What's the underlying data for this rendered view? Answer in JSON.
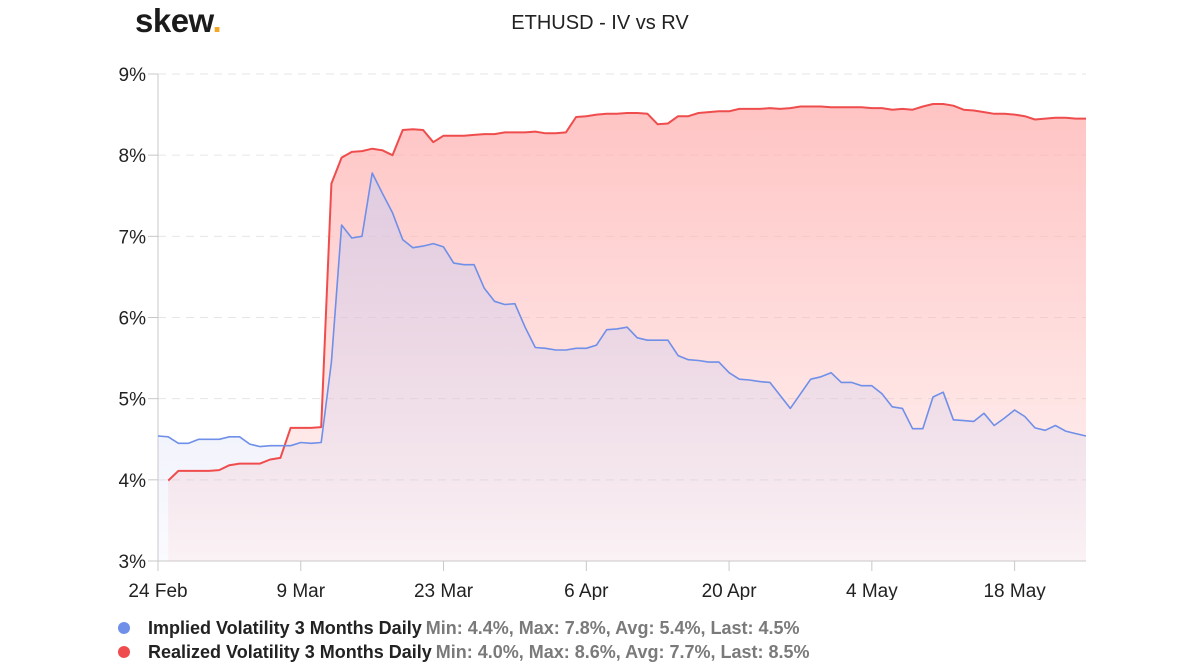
{
  "brand": {
    "name": "skew",
    "dot": "."
  },
  "chart_data": {
    "type": "area",
    "title": "ETHUSD - IV vs RV",
    "xlabel": "",
    "ylabel": "",
    "ylim": [
      3,
      9
    ],
    "y_unit": "%",
    "y_ticks": [
      "3%",
      "4%",
      "5%",
      "6%",
      "7%",
      "8%",
      "9%"
    ],
    "x_ticks": [
      "24 Feb",
      "9 Mar",
      "23 Mar",
      "6 Apr",
      "20 Apr",
      "4 May",
      "18 May"
    ],
    "x_tick_days": [
      0,
      14,
      28,
      42,
      56,
      70,
      84
    ],
    "grid": "horizontal dashed",
    "legend_position": "bottom-left",
    "series": [
      {
        "name": "Implied Volatility 3 Months Daily",
        "stats": "Min: 4.4%, Max: 7.8%, Avg: 5.4%, Last: 4.5%",
        "color": "#6f8fe8",
        "x": [
          0,
          1,
          2,
          3,
          4,
          5,
          6,
          7,
          8,
          9,
          10,
          11,
          12,
          13,
          14,
          15,
          16,
          17,
          18,
          19,
          20,
          21,
          22,
          23,
          24,
          25,
          26,
          27,
          28,
          29,
          30,
          31,
          32,
          33,
          34,
          35,
          36,
          37,
          38,
          39,
          40,
          41,
          42,
          43,
          44,
          45,
          46,
          47,
          48,
          49,
          50,
          51,
          52,
          53,
          54,
          55,
          56,
          57,
          58,
          59,
          60,
          61,
          62,
          63,
          64,
          65,
          66,
          67,
          68,
          69,
          70,
          71,
          72,
          73,
          74,
          75,
          76,
          77,
          78,
          79,
          80,
          81,
          82,
          83,
          84,
          85,
          86,
          87,
          88,
          89,
          90,
          91
        ],
        "y": [
          4.54,
          4.53,
          4.45,
          4.45,
          4.5,
          4.5,
          4.5,
          4.53,
          4.53,
          4.44,
          4.41,
          4.42,
          4.42,
          4.42,
          4.46,
          4.45,
          4.46,
          5.45,
          7.14,
          6.98,
          7.0,
          7.78,
          7.53,
          7.29,
          6.96,
          6.86,
          6.88,
          6.91,
          6.87,
          6.67,
          6.65,
          6.65,
          6.36,
          6.2,
          6.16,
          6.17,
          5.88,
          5.63,
          5.62,
          5.6,
          5.6,
          5.62,
          5.62,
          5.66,
          5.85,
          5.86,
          5.88,
          5.75,
          5.72,
          5.72,
          5.72,
          5.53,
          5.48,
          5.47,
          5.45,
          5.45,
          5.32,
          5.24,
          5.23,
          5.21,
          5.2,
          5.04,
          4.88,
          5.06,
          5.24,
          5.27,
          5.32,
          5.2,
          5.2,
          5.16,
          5.16,
          5.06,
          4.9,
          4.88,
          4.63,
          4.63,
          5.02,
          5.08,
          4.74,
          4.73,
          4.72,
          4.82,
          4.67,
          4.76,
          4.86,
          4.78,
          4.64,
          4.61,
          4.67,
          4.6,
          4.57,
          4.54
        ]
      },
      {
        "name": "Realized Volatility 3 Months Daily",
        "stats": "Min: 4.0%, Max: 8.6%, Avg: 7.7%, Last: 8.5%",
        "color": "#ef4d4d",
        "x": [
          1,
          2,
          3,
          4,
          5,
          6,
          7,
          8,
          9,
          10,
          11,
          12,
          13,
          14,
          15,
          16,
          17,
          18,
          19,
          20,
          21,
          22,
          23,
          24,
          25,
          26,
          27,
          28,
          29,
          30,
          31,
          32,
          33,
          34,
          35,
          36,
          37,
          38,
          39,
          40,
          41,
          42,
          43,
          44,
          45,
          46,
          47,
          48,
          49,
          50,
          51,
          52,
          53,
          54,
          55,
          56,
          57,
          58,
          59,
          60,
          61,
          62,
          63,
          64,
          65,
          66,
          67,
          68,
          69,
          70,
          71,
          72,
          73,
          74,
          75,
          76,
          77,
          78,
          79,
          80,
          81,
          82,
          83,
          84,
          85,
          86,
          87,
          88,
          89,
          90,
          91
        ],
        "y": [
          3.99,
          4.11,
          4.11,
          4.11,
          4.11,
          4.12,
          4.18,
          4.2,
          4.2,
          4.2,
          4.25,
          4.27,
          4.64,
          4.64,
          4.64,
          4.65,
          7.65,
          7.97,
          8.04,
          8.05,
          8.08,
          8.06,
          8.0,
          8.31,
          8.32,
          8.31,
          8.16,
          8.24,
          8.24,
          8.24,
          8.25,
          8.26,
          8.26,
          8.28,
          8.28,
          8.28,
          8.29,
          8.27,
          8.27,
          8.28,
          8.47,
          8.48,
          8.5,
          8.51,
          8.51,
          8.52,
          8.52,
          8.51,
          8.38,
          8.39,
          8.48,
          8.48,
          8.52,
          8.53,
          8.54,
          8.54,
          8.57,
          8.57,
          8.57,
          8.58,
          8.57,
          8.58,
          8.6,
          8.6,
          8.6,
          8.59,
          8.59,
          8.59,
          8.59,
          8.58,
          8.58,
          8.56,
          8.57,
          8.56,
          8.6,
          8.63,
          8.63,
          8.61,
          8.56,
          8.55,
          8.53,
          8.51,
          8.51,
          8.5,
          8.48,
          8.44,
          8.45,
          8.46,
          8.46,
          8.45,
          8.45
        ]
      }
    ]
  }
}
